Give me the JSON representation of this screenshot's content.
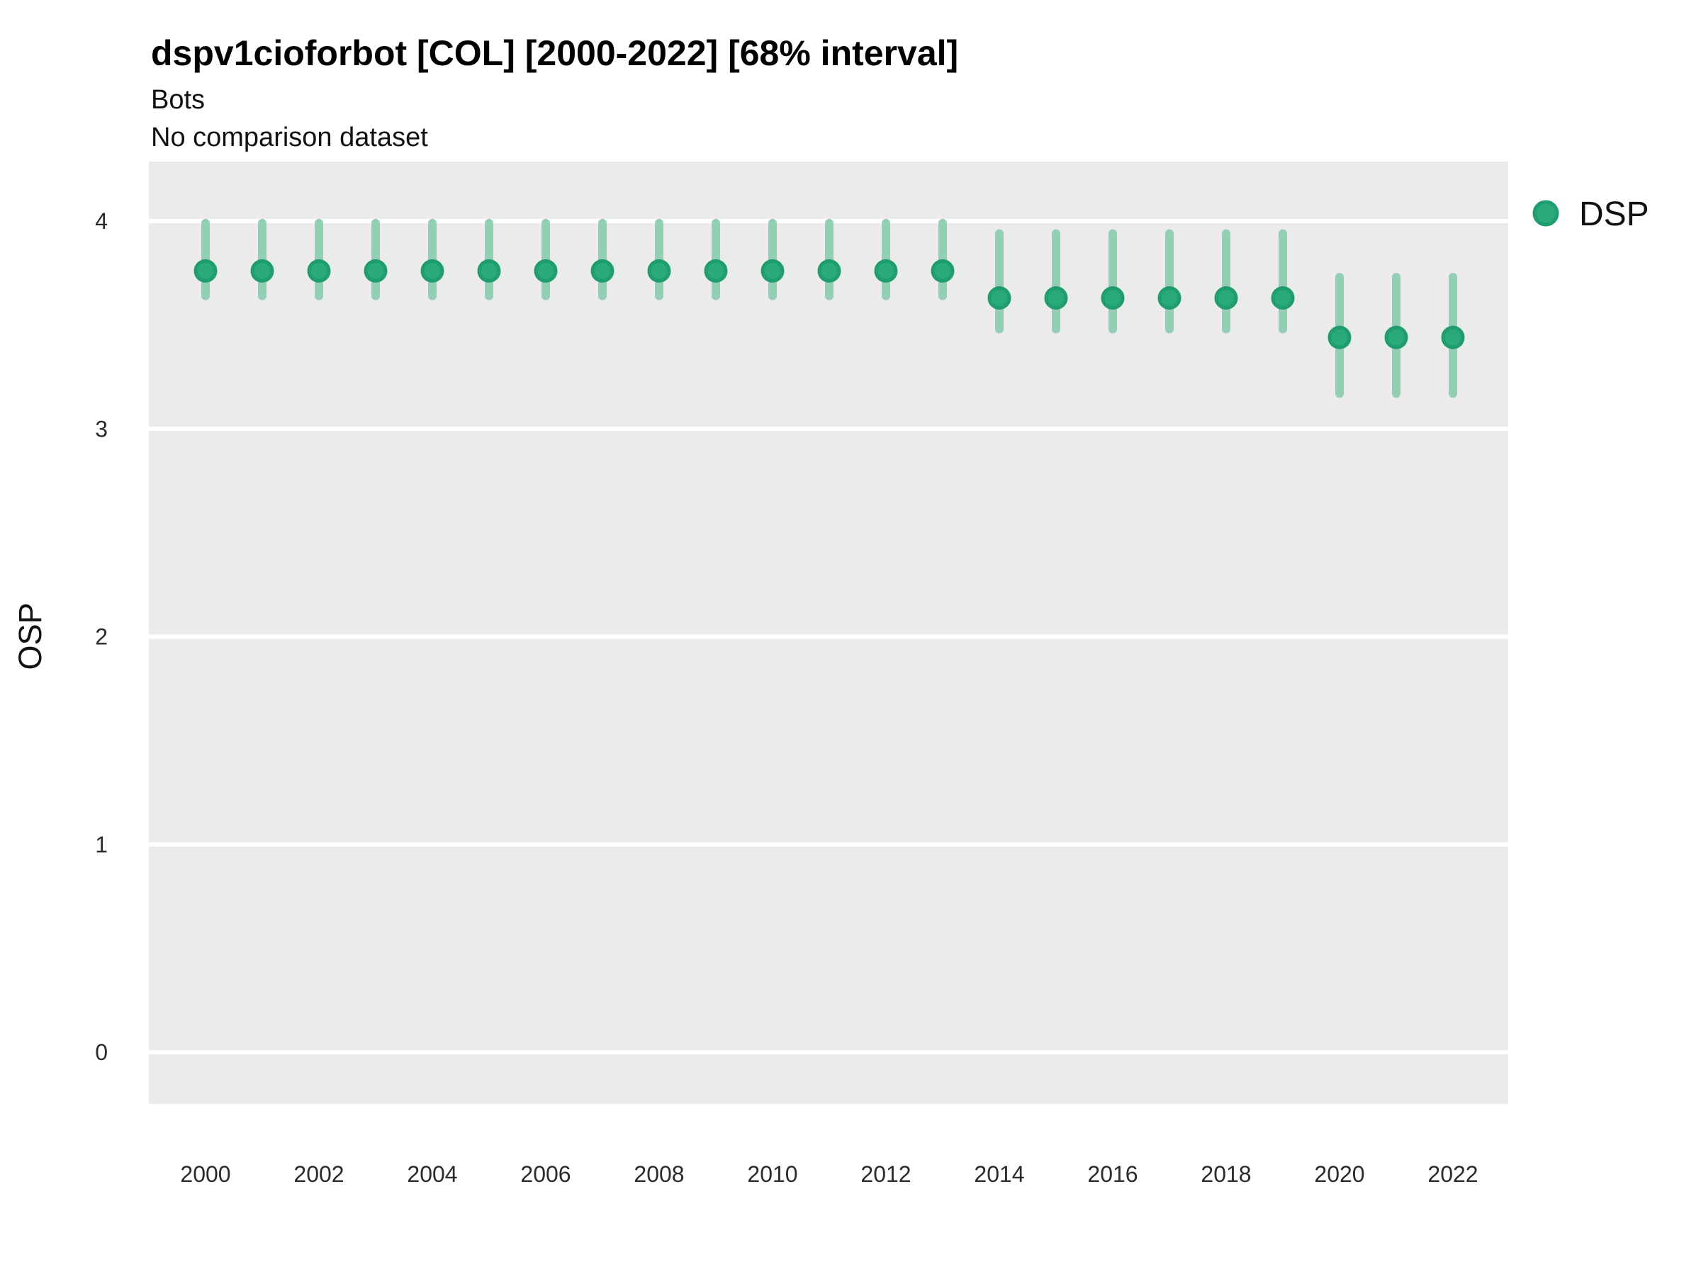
{
  "chart_data": {
    "type": "scatter",
    "variant": "pointrange",
    "title": "dspv1cioforbot [COL] [2000-2022] [68% interval]",
    "subtitle": "Bots",
    "note": "No comparison dataset",
    "xlabel": "",
    "ylabel": "OSP",
    "interval_level": "68%",
    "x": [
      2000,
      2001,
      2002,
      2003,
      2004,
      2005,
      2006,
      2007,
      2008,
      2009,
      2010,
      2011,
      2012,
      2013,
      2014,
      2015,
      2016,
      2017,
      2018,
      2019,
      2020,
      2021,
      2022
    ],
    "series": [
      {
        "name": "DSP",
        "mid": [
          3.76,
          3.76,
          3.76,
          3.76,
          3.76,
          3.76,
          3.76,
          3.76,
          3.76,
          3.76,
          3.76,
          3.76,
          3.76,
          3.76,
          3.63,
          3.63,
          3.63,
          3.63,
          3.63,
          3.63,
          3.44,
          3.44,
          3.44
        ],
        "lo": [
          3.64,
          3.64,
          3.64,
          3.64,
          3.64,
          3.64,
          3.64,
          3.64,
          3.64,
          3.64,
          3.64,
          3.64,
          3.64,
          3.64,
          3.48,
          3.48,
          3.48,
          3.48,
          3.48,
          3.48,
          3.17,
          3.17,
          3.17
        ],
        "hi": [
          3.99,
          3.99,
          3.99,
          3.99,
          3.99,
          3.99,
          3.99,
          3.99,
          3.99,
          3.99,
          3.99,
          3.99,
          3.99,
          3.99,
          3.94,
          3.94,
          3.94,
          3.94,
          3.94,
          3.94,
          3.73,
          3.73,
          3.73
        ]
      }
    ],
    "x_ticks": [
      2000,
      2002,
      2004,
      2006,
      2008,
      2010,
      2012,
      2014,
      2016,
      2018,
      2020,
      2022
    ],
    "y_ticks": [
      0,
      1,
      2,
      3,
      4
    ],
    "ylim": [
      -0.25,
      4.29
    ],
    "grid": "horizontal-major-white",
    "legend_position": "right",
    "legend": {
      "entries": [
        {
          "label": "DSP"
        }
      ]
    },
    "colors": {
      "panel_bg": "#ebebeb",
      "gridline": "#ffffff",
      "point_fill": "#2aa97b",
      "point_stroke": "#1e9e6e",
      "interval": "#93ceb5",
      "text": "#111111"
    }
  }
}
